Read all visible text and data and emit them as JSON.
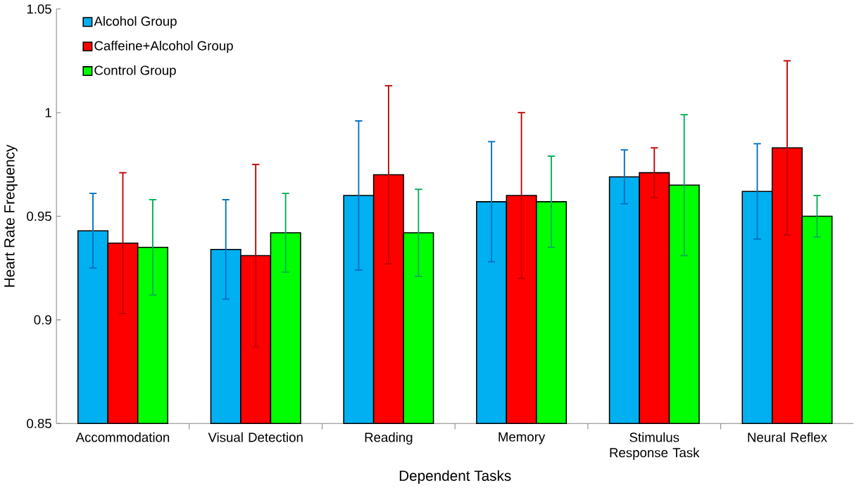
{
  "chart_data": {
    "type": "bar",
    "xlabel": "Dependent Tasks",
    "ylabel": "Heart Rate Frequency",
    "categories": [
      "Accommodation",
      "Visual Detection",
      "Reading",
      "Memory",
      "Stimulus Response Task",
      "Neural Reflex"
    ],
    "series": [
      {
        "name": "Alcohol Group",
        "color": "#00b0f0",
        "values": [
          0.943,
          0.934,
          0.96,
          0.957,
          0.969,
          0.962
        ],
        "errors": [
          0.018,
          0.024,
          0.036,
          0.029,
          0.013,
          0.023
        ]
      },
      {
        "name": "Caffeine+Alcohol Group",
        "color": "#ff0000",
        "values": [
          0.937,
          0.931,
          0.97,
          0.96,
          0.971,
          0.983
        ],
        "errors": [
          0.034,
          0.044,
          0.043,
          0.04,
          0.012,
          0.042
        ]
      },
      {
        "name": "Control Group",
        "color": "#00ff00",
        "values": [
          0.935,
          0.942,
          0.942,
          0.957,
          0.965,
          0.95
        ],
        "errors": [
          0.023,
          0.019,
          0.021,
          0.022,
          0.034,
          0.01
        ]
      }
    ],
    "ylim": [
      0.85,
      1.05
    ],
    "yticks": [
      0.85,
      0.9,
      0.95,
      1,
      1.05
    ],
    "grid": false,
    "legend": "top left"
  }
}
